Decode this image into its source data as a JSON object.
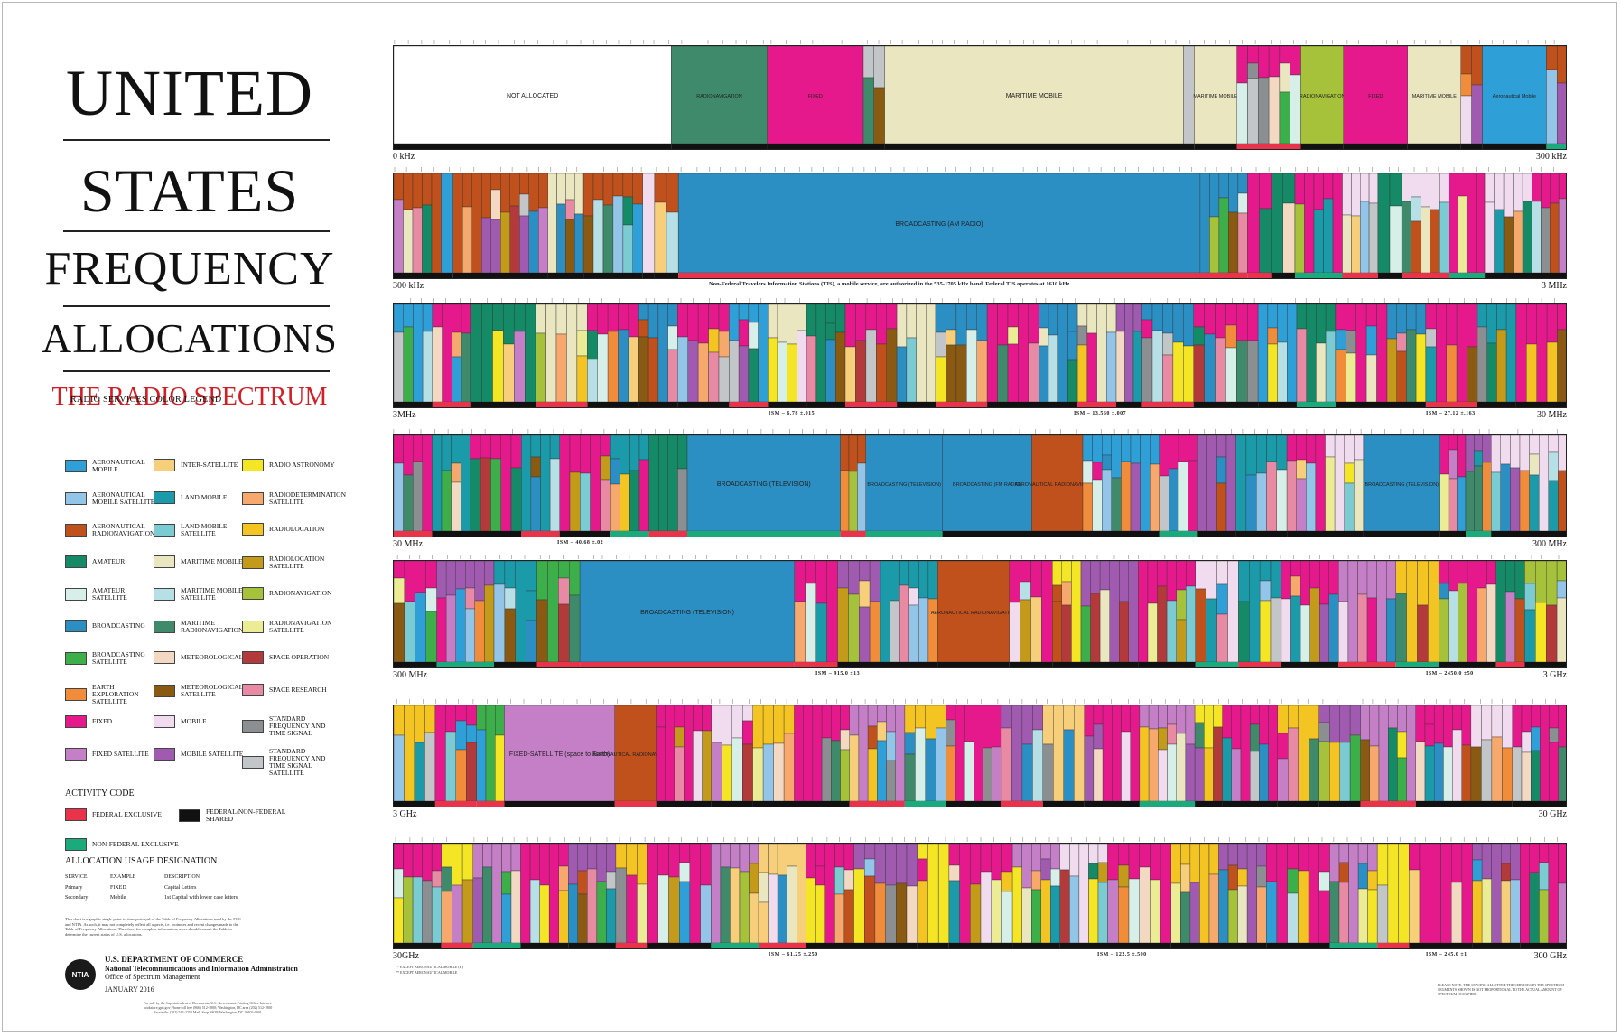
{
  "poster": {
    "title_lines": [
      "UNITED",
      "STATES",
      "FREQUENCY",
      "ALLOCATIONS"
    ],
    "subtitle": "THE RADIO SPECTRUM"
  },
  "legend": {
    "title": "RADIO SERVICES COLOR LEGEND",
    "items": [
      {
        "label": "AERONAUTICAL MOBILE",
        "color": "#2f9fd8"
      },
      {
        "label": "AERONAUTICAL MOBILE SATELLITE",
        "color": "#93c5e8"
      },
      {
        "label": "AERONAUTICAL RADIONAVIGATION",
        "color": "#c0501c"
      },
      {
        "label": "AMATEUR",
        "color": "#148a66"
      },
      {
        "label": "AMATEUR SATELLITE",
        "color": "#d6efe9"
      },
      {
        "label": "BROADCASTING",
        "color": "#2c8fc4"
      },
      {
        "label": "BROADCASTING SATELLITE",
        "color": "#3cae4a"
      },
      {
        "label": "EARTH EXPLORATION SATELLITE",
        "color": "#f08c3a"
      },
      {
        "label": "FIXED",
        "color": "#e6198c"
      },
      {
        "label": "FIXED SATELLITE",
        "color": "#c47fc6"
      },
      {
        "label": "INTER-SATELLITE",
        "color": "#f7cf7a"
      },
      {
        "label": "LAND MOBILE",
        "color": "#1b9aaa"
      },
      {
        "label": "LAND MOBILE SATELLITE",
        "color": "#7bcbd3"
      },
      {
        "label": "MARITIME MOBILE",
        "color": "#eae6c0"
      },
      {
        "label": "MARITIME MOBILE SATELLITE",
        "color": "#b7e0e6"
      },
      {
        "label": "MARITIME RADIONAVIGATION",
        "color": "#3f8a6a"
      },
      {
        "label": "METEOROLOGICAL",
        "color": "#f4d9c2"
      },
      {
        "label": "METEOROLOGICAL SATELLITE",
        "color": "#8a5a12"
      },
      {
        "label": "MOBILE",
        "color": "#f1dcef"
      },
      {
        "label": "MOBILE SATELLITE",
        "color": "#a05ab0"
      },
      {
        "label": "RADIO ASTRONOMY",
        "color": "#f5e625"
      },
      {
        "label": "RADIODETERMINATION SATELLITE",
        "color": "#f7a86c"
      },
      {
        "label": "RADIOLOCATION",
        "color": "#f4c423"
      },
      {
        "label": "RADIOLOCATION SATELLITE",
        "color": "#c49a1a"
      },
      {
        "label": "RADIONAVIGATION",
        "color": "#a6c23a"
      },
      {
        "label": "RADIONAVIGATION SATELLITE",
        "color": "#ecec94"
      },
      {
        "label": "SPACE OPERATION",
        "color": "#b33a3a"
      },
      {
        "label": "SPACE RESEARCH",
        "color": "#e88aa4"
      },
      {
        "label": "STANDARD FREQUENCY AND TIME SIGNAL",
        "color": "#8c8f91"
      },
      {
        "label": "STANDARD FREQUENCY AND TIME SIGNAL SATELLITE",
        "color": "#c3c6c8"
      }
    ]
  },
  "activity": {
    "title": "ACTIVITY CODE",
    "items": [
      {
        "label": "FEDERAL EXCLUSIVE",
        "color": "#e8334a"
      },
      {
        "label": "FEDERAL/NON-FEDERAL SHARED",
        "color": "#111111"
      },
      {
        "label": "NON-FEDERAL EXCLUSIVE",
        "color": "#1aaa7c"
      }
    ]
  },
  "usage": {
    "title": "ALLOCATION USAGE DESIGNATION",
    "headers": [
      "SERVICE",
      "EXAMPLE",
      "DESCRIPTION"
    ],
    "rows": [
      [
        "Primary",
        "FIXED",
        "Capital Letters"
      ],
      [
        "Secondary",
        "Mobile",
        "1st Capital with lower case letters"
      ]
    ]
  },
  "fine_print": "This chart is a graphic single-point-in-time portrayal of the Table of Frequency Allocations used by the FCC and NTIA. As such, it may not completely reflect all aspects, i.e. footnotes and recent changes made to the Table of Frequency Allocations. Therefore, for complete information, users should consult the Table to determine the current status of U.S. allocations.",
  "publisher": {
    "logo": "NTIA",
    "department": "U.S. DEPARTMENT OF COMMERCE",
    "agency": "National Telecommunications and Information Administration",
    "office": "Office of Spectrum Management",
    "date": "JANUARY 2016",
    "sale_note": "For sale by the Superintendent of Documents, U.S. Government Printing Office Internet: bookstore.gpo.gov Phone toll free (866) 512-1800; Washington, DC area (202) 512-1800 Facsimile: (202) 512-2250 Mail: Stop SSOP, Washington, DC 20402-0001"
  },
  "bands": [
    {
      "start": "0 kHz",
      "end": "300 kHz",
      "ism": [],
      "blocks": [
        {
          "label": "NOT ALLOCATED",
          "color": "#ffffff",
          "w": 26
        },
        {
          "label": "RADIONAVIGATION",
          "color": "#3f8a6a",
          "w": 9
        },
        {
          "label": "FIXED",
          "color": "#e6198c",
          "w": 9
        },
        {
          "label": "",
          "color": "#c3c6c8",
          "w": 2
        },
        {
          "label": "MARITIME MOBILE",
          "color": "#eae6c0",
          "w": 28
        },
        {
          "label": "",
          "color": "#c3c6c8",
          "w": 1
        },
        {
          "label": "MARITIME MOBILE",
          "color": "#eae6c0",
          "w": 4
        },
        {
          "label": "",
          "color": "#e6198c",
          "w": 6
        },
        {
          "label": "RADIONAVIGATION",
          "color": "#a6c23a",
          "w": 4
        },
        {
          "label": "FIXED",
          "color": "#e6198c",
          "w": 6
        },
        {
          "label": "MARITIME MOBILE",
          "color": "#eae6c0",
          "w": 5
        },
        {
          "label": "",
          "color": "#c0501c",
          "w": 2
        },
        {
          "label": "Aeronautical Mobile",
          "color": "#2f9fd8",
          "w": 6
        },
        {
          "label": "",
          "color": "#c0501c",
          "w": 2
        }
      ]
    },
    {
      "start": "300 kHz",
      "end": "3 MHz",
      "ism": [],
      "blocks": [
        {
          "label": "",
          "color": "#c0501c",
          "w": 4
        },
        {
          "label": "",
          "color": "#2f9fd8",
          "w": 1
        },
        {
          "label": "",
          "color": "#c0501c",
          "w": 8
        },
        {
          "label": "",
          "color": "#eae6c0",
          "w": 3
        },
        {
          "label": "",
          "color": "#c0501c",
          "w": 5
        },
        {
          "label": "",
          "color": "#f1dcef",
          "w": 1
        },
        {
          "label": "",
          "color": "#c0501c",
          "w": 2
        },
        {
          "label": "BROADCASTING (AM RADIO)",
          "color": "#2c8fc4",
          "w": 44
        },
        {
          "label": "",
          "color": "#2c8fc4",
          "w": 4
        },
        {
          "label": "",
          "color": "#e6198c",
          "w": 2
        },
        {
          "label": "",
          "color": "#148a66",
          "w": 2
        },
        {
          "label": "",
          "color": "#e6198c",
          "w": 4
        },
        {
          "label": "",
          "color": "#f1dcef",
          "w": 3
        },
        {
          "label": "",
          "color": "#148a66",
          "w": 2
        },
        {
          "label": "",
          "color": "#f1dcef",
          "w": 4
        },
        {
          "label": "",
          "color": "#e6198c",
          "w": 3
        },
        {
          "label": "",
          "color": "#f1dcef",
          "w": 4
        },
        {
          "label": "",
          "color": "#e6198c",
          "w": 3
        }
      ],
      "note": "Non-Federal Travelers Information Stations (TIS), a mobile service, are authorized in the 535-1705 kHz band. Federal TIS operates at 1610 kHz."
    },
    {
      "start": "3MHz",
      "end": "30 MHz",
      "ism": [
        "ISM – 6.78 ±.015",
        "ISM – 13.560 ±.007",
        "ISM – 27.12 ±.163"
      ],
      "blocks": [
        {
          "label": "",
          "color": "#2f9fd8",
          "w": 3
        },
        {
          "label": "",
          "color": "#e6198c",
          "w": 3
        },
        {
          "label": "",
          "color": "#148a66",
          "w": 5
        },
        {
          "label": "",
          "color": "#eae6c0",
          "w": 4
        },
        {
          "label": "",
          "color": "#e6198c",
          "w": 4
        },
        {
          "label": "",
          "color": "#2c8fc4",
          "w": 3
        },
        {
          "label": "",
          "color": "#e6198c",
          "w": 4
        },
        {
          "label": "",
          "color": "#2f9fd8",
          "w": 3
        },
        {
          "label": "",
          "color": "#eae6c0",
          "w": 3
        },
        {
          "label": "",
          "color": "#148a66",
          "w": 3
        },
        {
          "label": "",
          "color": "#e6198c",
          "w": 4
        },
        {
          "label": "",
          "color": "#eae6c0",
          "w": 3
        },
        {
          "label": "",
          "color": "#2c8fc4",
          "w": 4
        },
        {
          "label": "",
          "color": "#e6198c",
          "w": 4
        },
        {
          "label": "",
          "color": "#2c8fc4",
          "w": 3
        },
        {
          "label": "",
          "color": "#eae6c0",
          "w": 3
        },
        {
          "label": "",
          "color": "#a05ab0",
          "w": 2
        },
        {
          "label": "",
          "color": "#2c8fc4",
          "w": 4
        },
        {
          "label": "",
          "color": "#e6198c",
          "w": 5
        },
        {
          "label": "",
          "color": "#2f9fd8",
          "w": 3
        },
        {
          "label": "",
          "color": "#148a66",
          "w": 3
        },
        {
          "label": "",
          "color": "#e6198c",
          "w": 4
        },
        {
          "label": "",
          "color": "#2c8fc4",
          "w": 3
        },
        {
          "label": "",
          "color": "#e6198c",
          "w": 4
        },
        {
          "label": "",
          "color": "#1b9aaa",
          "w": 3
        },
        {
          "label": "",
          "color": "#e6198c",
          "w": 4
        }
      ]
    },
    {
      "start": "30 MHz",
      "end": "300 MHz",
      "ism": [
        "ISM – 40.68 ±.02"
      ],
      "blocks": [
        {
          "label": "",
          "color": "#e6198c",
          "w": 3
        },
        {
          "label": "",
          "color": "#1b9aaa",
          "w": 3
        },
        {
          "label": "",
          "color": "#e6198c",
          "w": 4
        },
        {
          "label": "",
          "color": "#1b9aaa",
          "w": 3
        },
        {
          "label": "",
          "color": "#e6198c",
          "w": 4
        },
        {
          "label": "",
          "color": "#1b9aaa",
          "w": 3
        },
        {
          "label": "",
          "color": "#148a66",
          "w": 3
        },
        {
          "label": "BROADCASTING (TELEVISION)",
          "color": "#2c8fc4",
          "w": 12
        },
        {
          "label": "",
          "color": "#c0501c",
          "w": 2
        },
        {
          "label": "BROADCASTING (TELEVISION)",
          "color": "#2c8fc4",
          "w": 6
        },
        {
          "label": "BROADCASTING (FM RADIO)",
          "color": "#2c8fc4",
          "w": 7
        },
        {
          "label": "AERONAUTICAL RADIONAVIGATION",
          "color": "#c0501c",
          "w": 4
        },
        {
          "label": "",
          "color": "#2f9fd8",
          "w": 6
        },
        {
          "label": "",
          "color": "#e6198c",
          "w": 3
        },
        {
          "label": "",
          "color": "#a05ab0",
          "w": 3
        },
        {
          "label": "",
          "color": "#1b9aaa",
          "w": 4
        },
        {
          "label": "",
          "color": "#e6198c",
          "w": 3
        },
        {
          "label": "",
          "color": "#f1dcef",
          "w": 3
        },
        {
          "label": "BROADCASTING (TELEVISION)",
          "color": "#2c8fc4",
          "w": 6
        },
        {
          "label": "",
          "color": "#e6198c",
          "w": 2
        },
        {
          "label": "",
          "color": "#a05ab0",
          "w": 2
        },
        {
          "label": "",
          "color": "#f1dcef",
          "w": 6
        }
      ]
    },
    {
      "start": "300 MHz",
      "end": "3 GHz",
      "ism": [
        "ISM – 915.0 ±13",
        "ISM – 2450.0 ±50"
      ],
      "blocks": [
        {
          "label": "",
          "color": "#e6198c",
          "w": 3
        },
        {
          "label": "",
          "color": "#a05ab0",
          "w": 4
        },
        {
          "label": "",
          "color": "#1b9aaa",
          "w": 3
        },
        {
          "label": "",
          "color": "#3cae4a",
          "w": 3
        },
        {
          "label": "BROADCASTING (TELEVISION)",
          "color": "#2c8fc4",
          "w": 15
        },
        {
          "label": "",
          "color": "#e6198c",
          "w": 3
        },
        {
          "label": "",
          "color": "#a05ab0",
          "w": 3
        },
        {
          "label": "",
          "color": "#1b9aaa",
          "w": 4
        },
        {
          "label": "AERONAUTICAL RADIONAVIGATION",
          "color": "#c0501c",
          "w": 5
        },
        {
          "label": "",
          "color": "#e6198c",
          "w": 3
        },
        {
          "label": "",
          "color": "#f5e625",
          "w": 2
        },
        {
          "label": "",
          "color": "#a05ab0",
          "w": 4
        },
        {
          "label": "",
          "color": "#e6198c",
          "w": 4
        },
        {
          "label": "",
          "color": "#f1dcef",
          "w": 3
        },
        {
          "label": "",
          "color": "#1b9aaa",
          "w": 3
        },
        {
          "label": "",
          "color": "#e6198c",
          "w": 4
        },
        {
          "label": "",
          "color": "#c47fc6",
          "w": 4
        },
        {
          "label": "",
          "color": "#f4c423",
          "w": 3
        },
        {
          "label": "",
          "color": "#e6198c",
          "w": 4
        },
        {
          "label": "",
          "color": "#148a66",
          "w": 2
        },
        {
          "label": "",
          "color": "#a6c23a",
          "w": 3
        }
      ]
    },
    {
      "start": "3 GHz",
      "end": "30 GHz",
      "ism": [],
      "blocks": [
        {
          "label": "",
          "color": "#f4c423",
          "w": 3
        },
        {
          "label": "",
          "color": "#e6198c",
          "w": 3
        },
        {
          "label": "",
          "color": "#3cae4a",
          "w": 2
        },
        {
          "label": "FIXED-SATELLITE (space to Earth)",
          "color": "#c47fc6",
          "w": 8
        },
        {
          "label": "AERONAUTICAL RADIONAVIGATION",
          "color": "#c0501c",
          "w": 3
        },
        {
          "label": "",
          "color": "#e6198c",
          "w": 4
        },
        {
          "label": "",
          "color": "#f1dcef",
          "w": 3
        },
        {
          "label": "",
          "color": "#f4c423",
          "w": 3
        },
        {
          "label": "",
          "color": "#e6198c",
          "w": 4
        },
        {
          "label": "",
          "color": "#c47fc6",
          "w": 4
        },
        {
          "label": "",
          "color": "#f4c423",
          "w": 3
        },
        {
          "label": "",
          "color": "#e6198c",
          "w": 4
        },
        {
          "label": "",
          "color": "#a05ab0",
          "w": 3
        },
        {
          "label": "",
          "color": "#f7cf7a",
          "w": 3
        },
        {
          "label": "",
          "color": "#e6198c",
          "w": 4
        },
        {
          "label": "",
          "color": "#c47fc6",
          "w": 4
        },
        {
          "label": "",
          "color": "#f5e625",
          "w": 2
        },
        {
          "label": "",
          "color": "#e6198c",
          "w": 4
        },
        {
          "label": "",
          "color": "#f4c423",
          "w": 3
        },
        {
          "label": "",
          "color": "#a05ab0",
          "w": 3
        },
        {
          "label": "",
          "color": "#c47fc6",
          "w": 4
        },
        {
          "label": "",
          "color": "#e6198c",
          "w": 4
        },
        {
          "label": "",
          "color": "#f1dcef",
          "w": 3
        },
        {
          "label": "",
          "color": "#e6198c",
          "w": 4
        }
      ]
    },
    {
      "start": "30GHz",
      "end": "300 GHz",
      "ism": [
        "ISM – 61.25 ±.250",
        "ISM – 122.5 ±.500",
        "ISM – 245.0 ±1"
      ],
      "blocks": [
        {
          "label": "",
          "color": "#e6198c",
          "w": 3
        },
        {
          "label": "",
          "color": "#f5e625",
          "w": 2
        },
        {
          "label": "",
          "color": "#c47fc6",
          "w": 3
        },
        {
          "label": "",
          "color": "#e6198c",
          "w": 3
        },
        {
          "label": "",
          "color": "#a05ab0",
          "w": 3
        },
        {
          "label": "",
          "color": "#f4c423",
          "w": 2
        },
        {
          "label": "",
          "color": "#e6198c",
          "w": 4
        },
        {
          "label": "",
          "color": "#c47fc6",
          "w": 3
        },
        {
          "label": "",
          "color": "#f7cf7a",
          "w": 3
        },
        {
          "label": "",
          "color": "#e6198c",
          "w": 3
        },
        {
          "label": "",
          "color": "#a05ab0",
          "w": 4
        },
        {
          "label": "",
          "color": "#f5e625",
          "w": 2
        },
        {
          "label": "",
          "color": "#e6198c",
          "w": 4
        },
        {
          "label": "",
          "color": "#c47fc6",
          "w": 3
        },
        {
          "label": "",
          "color": "#f1dcef",
          "w": 3
        },
        {
          "label": "",
          "color": "#e6198c",
          "w": 4
        },
        {
          "label": "",
          "color": "#f4c423",
          "w": 3
        },
        {
          "label": "",
          "color": "#a05ab0",
          "w": 3
        },
        {
          "label": "",
          "color": "#e6198c",
          "w": 4
        },
        {
          "label": "",
          "color": "#c47fc6",
          "w": 3
        },
        {
          "label": "",
          "color": "#f5e625",
          "w": 2
        },
        {
          "label": "",
          "color": "#e6198c",
          "w": 4
        },
        {
          "label": "",
          "color": "#a05ab0",
          "w": 3
        },
        {
          "label": "",
          "color": "#e6198c",
          "w": 3
        }
      ]
    }
  ],
  "footnotes": {
    "left": [
      "** EXCEPT AERONAUTICAL MOBILE (R)",
      "** EXCEPT AERONAUTICAL MOBILE"
    ],
    "right": "PLEASE NOTE: THE SPACING ALLOTTED THE SERVICES IN THE SPECTRUM SEGMENTS SHOWN IS NOT PROPORTIONAL TO THE ACTUAL AMOUNT OF SPECTRUM OCCUPIED."
  }
}
